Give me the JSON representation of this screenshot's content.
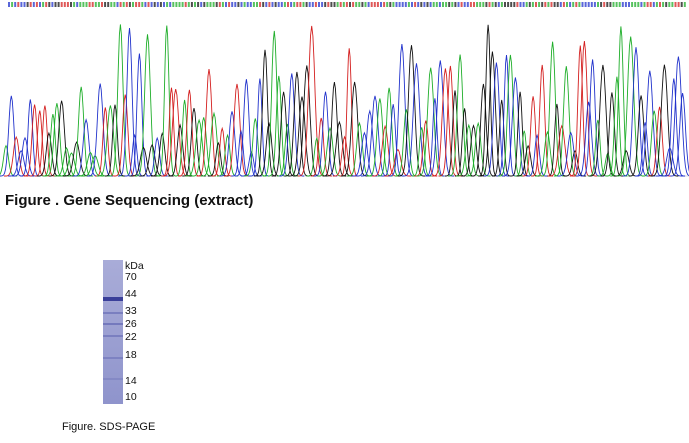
{
  "sequencing": {
    "caption": "Figure . Gene Sequencing (extract)"
  },
  "gel": {
    "unit": "kDa",
    "markers": [
      70,
      44,
      33,
      26,
      22,
      18,
      14,
      10
    ],
    "caption": "Figure. SDS-PAGE"
  }
}
